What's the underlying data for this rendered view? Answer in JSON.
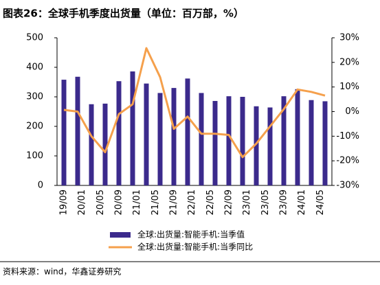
{
  "chart_data": {
    "type": "bar_line",
    "title": "图表26：全球手机季度出货量（单位：百万部，%）",
    "source": "资料来源：wind，华鑫证券研究",
    "x_labels": [
      "19/09",
      "20/01",
      "20/05",
      "20/09",
      "21/01",
      "21/05",
      "21/09",
      "22/01",
      "22/05",
      "22/09",
      "23/01",
      "23/05",
      "23/09",
      "24/01",
      "24/05"
    ],
    "series": [
      {
        "name": "全球:出货量:智能手机:当季值",
        "type": "bar",
        "color": "#3b2a8c",
        "values": [
          358,
          368,
          275,
          277,
          353,
          386,
          345,
          313,
          330,
          362,
          313,
          286,
          302,
          300,
          268,
          264,
          302,
          326,
          289,
          285
        ]
      },
      {
        "name": "全球:出货量:智能手机:当季同比",
        "type": "line",
        "axis": "y2",
        "color": "#f5a04c",
        "values": [
          0.7,
          0,
          -10,
          -16.5,
          -1,
          3,
          25.8,
          14,
          -7,
          -2,
          -9,
          -9,
          -9.5,
          -18.5,
          -13,
          -6,
          1,
          9,
          8,
          6.5
        ]
      }
    ],
    "ylim": [
      0,
      500
    ],
    "yticks": [
      0,
      100,
      200,
      300,
      400,
      500
    ],
    "y2lim": [
      -30,
      30
    ],
    "y2ticks": [
      {
        "value": -30,
        "label": "-30%"
      },
      {
        "value": -20,
        "label": "-20%"
      },
      {
        "value": -10,
        "label": "-10%"
      },
      {
        "value": 0,
        "label": "0%"
      },
      {
        "value": 10,
        "label": "10%"
      },
      {
        "value": 20,
        "label": "20%"
      },
      {
        "value": 30,
        "label": "30%"
      }
    ]
  }
}
